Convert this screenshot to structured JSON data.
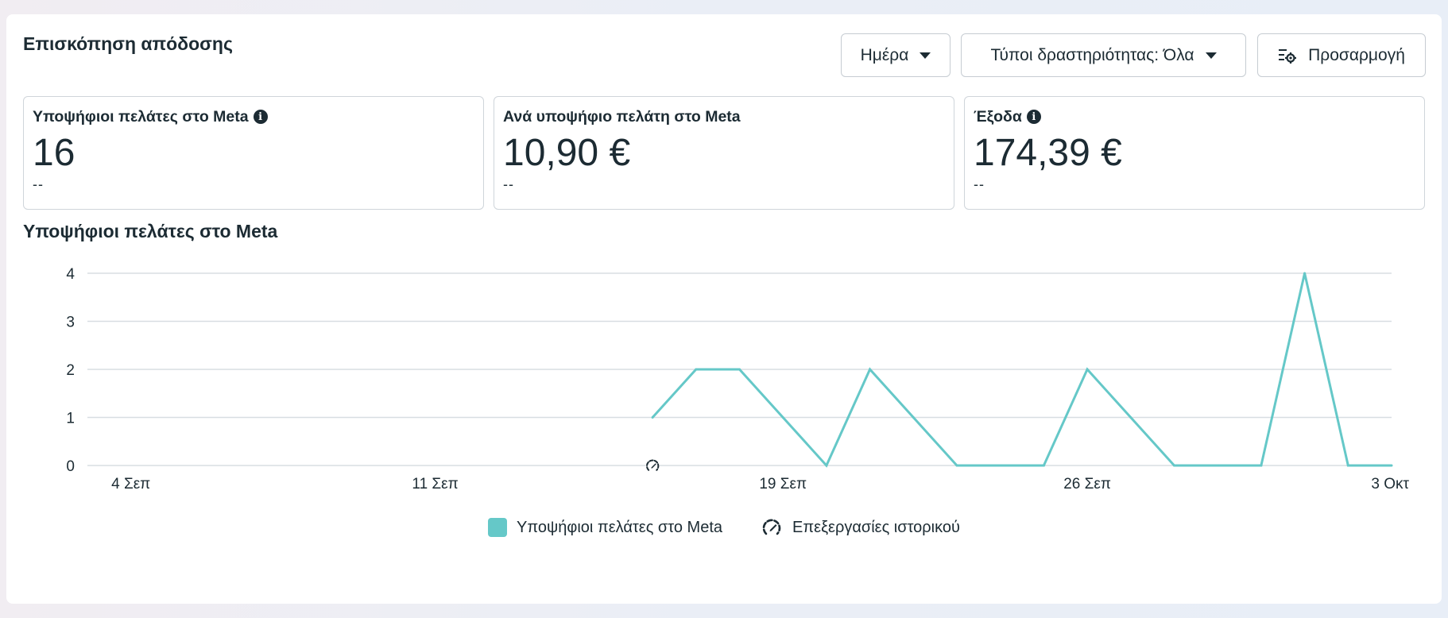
{
  "header": {
    "title": "Επισκόπηση απόδοσης",
    "day_button": "Ημέρα",
    "activity_types_button": "Τύποι δραστηριότητας: Όλα",
    "customize_button": "Προσαρμογή"
  },
  "cards": [
    {
      "label": "Υποψήφιοι πελάτες στο Meta",
      "value": "16",
      "sub": "--",
      "has_info": true
    },
    {
      "label": "Ανά υποψήφιο πελάτη στο Meta",
      "value": "10,90 €",
      "sub": "--",
      "has_info": false
    },
    {
      "label": "Έξοδα",
      "value": "174,39 €",
      "sub": "--",
      "has_info": true
    }
  ],
  "chart_section_title": "Υποψήφιοι πελάτες στο Meta",
  "colors": {
    "series": "#65c8c8",
    "grid": "#d8dde2",
    "text": "#1c2b33"
  },
  "chart_data": {
    "type": "line",
    "ylim": [
      0,
      4
    ],
    "yticks": [
      "0",
      "1",
      "2",
      "3",
      "4"
    ],
    "xtick_labels": [
      {
        "label": "4 Σεπ",
        "index": 1
      },
      {
        "label": "11 Σεπ",
        "index": 8
      },
      {
        "label": "19 Σεπ",
        "index": 16
      },
      {
        "label": "26 Σεπ",
        "index": 23
      },
      {
        "label": "3 Οκτ",
        "index": 30
      }
    ],
    "x_count": 31,
    "series": [
      {
        "name": "Υποψήφιοι πελάτες στο Μeta",
        "start_index": 13,
        "values": [
          1,
          2,
          2,
          1,
          0,
          2,
          1,
          0,
          0,
          0,
          2,
          1,
          0,
          0,
          0,
          4,
          0,
          0
        ]
      }
    ],
    "history_edit_marker_index": 13,
    "legend": [
      "Υποψήφιοι πελάτες στο Meta",
      "Επεξεργασίες ιστορικού"
    ]
  }
}
